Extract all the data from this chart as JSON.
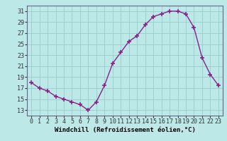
{
  "x": [
    0,
    1,
    2,
    3,
    4,
    5,
    6,
    7,
    8,
    9,
    10,
    11,
    12,
    13,
    14,
    15,
    16,
    17,
    18,
    19,
    20,
    21,
    22,
    23
  ],
  "y": [
    18,
    17,
    16.5,
    15.5,
    15,
    14.5,
    14,
    13,
    14.5,
    17.5,
    21.5,
    23.5,
    25.5,
    26.5,
    28.5,
    30,
    30.5,
    31,
    31,
    30.5,
    28,
    22.5,
    19.5,
    17.5
  ],
  "line_color": "#882288",
  "marker": "+",
  "marker_size": 4,
  "bg_color": "#bce8e8",
  "grid_color": "#99cccc",
  "xlabel": "Windchill (Refroidissement éolien,°C)",
  "xlabel_fontsize": 6.5,
  "tick_fontsize": 6,
  "ylim": [
    12,
    32
  ],
  "yticks": [
    13,
    15,
    17,
    19,
    21,
    23,
    25,
    27,
    29,
    31
  ],
  "xticks": [
    0,
    1,
    2,
    3,
    4,
    5,
    6,
    7,
    8,
    9,
    10,
    11,
    12,
    13,
    14,
    15,
    16,
    17,
    18,
    19,
    20,
    21,
    22,
    23
  ]
}
